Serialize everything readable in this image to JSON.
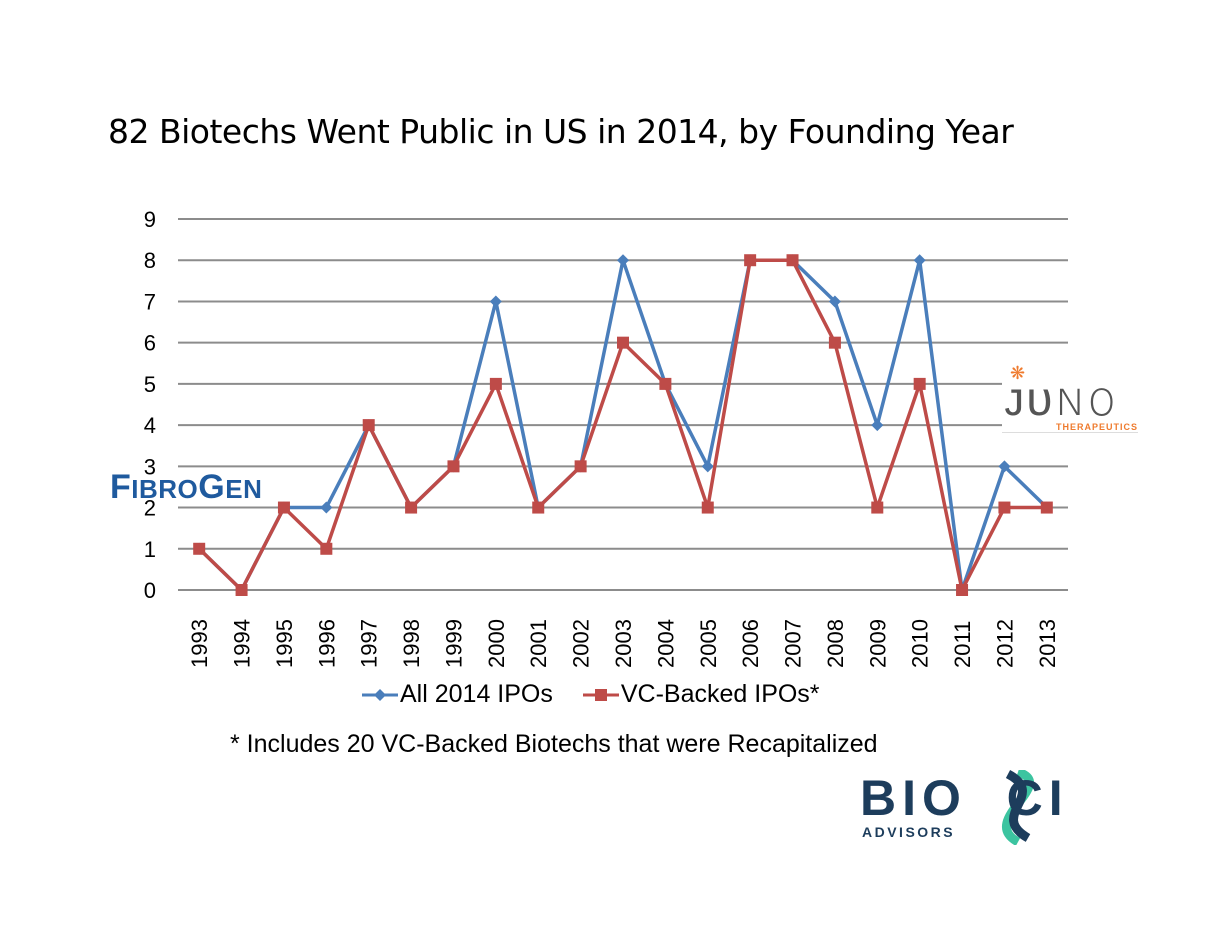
{
  "chart_data": {
    "type": "line",
    "title": "82 Biotechs Went Public in US in 2014, by Founding Year",
    "xlabel": "",
    "ylabel": "",
    "ylim": [
      0,
      9
    ],
    "yticks": [
      "0",
      "1",
      "2",
      "3",
      "4",
      "5",
      "6",
      "7",
      "8",
      "9"
    ],
    "grid": true,
    "legend_position": "bottom",
    "categories": [
      "1993",
      "1994",
      "1995",
      "1996",
      "1997",
      "1998",
      "1999",
      "2000",
      "2001",
      "2002",
      "2003",
      "2004",
      "2005",
      "2006",
      "2007",
      "2008",
      "2009",
      "2010",
      "2011",
      "2012",
      "2013"
    ],
    "series": [
      {
        "name": "All 2014 IPOs",
        "color": "#4a7ebb",
        "marker": "diamond",
        "values": [
          1,
          0,
          2,
          2,
          4,
          2,
          3,
          7,
          2,
          3,
          8,
          5,
          3,
          8,
          8,
          7,
          4,
          8,
          0,
          3,
          2
        ]
      },
      {
        "name": "VC-Backed IPOs*",
        "color": "#be4b48",
        "marker": "square",
        "values": [
          1,
          0,
          2,
          1,
          4,
          2,
          3,
          5,
          2,
          3,
          6,
          5,
          2,
          8,
          8,
          6,
          2,
          5,
          0,
          2,
          2
        ]
      }
    ],
    "footnote": "* Includes 20 VC-Backed Biotechs that were Recapitalized"
  },
  "logos": {
    "fibrogen": {
      "first": "F",
      "rest1": "IBRO",
      "mid": "G",
      "rest2": "EN",
      "color": "#1f5a9e"
    },
    "juno": {
      "word": "JUNO",
      "sub": "THERAPEUTICS",
      "star": "❋",
      "accent": "#ef7b2e"
    },
    "biosci": {
      "word": "BIOSCI",
      "sub": "ADVISORS",
      "color": "#1d3d5c",
      "accent": "#3cc4a0"
    }
  }
}
